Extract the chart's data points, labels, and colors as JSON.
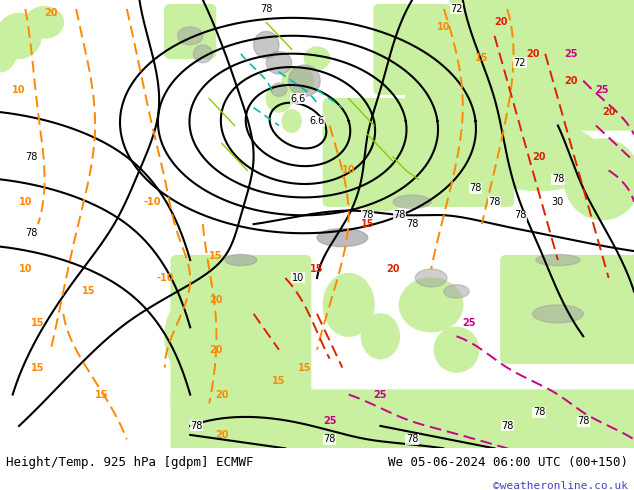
{
  "title_left": "Height/Temp. 925 hPa [gdpm] ECMWF",
  "title_right": "We 05-06-2024 06:00 UTC (00+150)",
  "copyright": "©weatheronline.co.uk",
  "fig_width": 6.34,
  "fig_height": 4.9,
  "dpi": 100,
  "title_fontsize": 9,
  "copyright_color": "#4444cc",
  "copyright_fontsize": 8,
  "land_color": "#c8f0a0",
  "sea_color": "#e8e8e8",
  "gray_color": "#a0a0a0",
  "bottom_bg": "#ffffff",
  "map_bg": "#e0e0e0",
  "geo_color": "#000000",
  "orange_color": "#ff8800",
  "red_color": "#dd2200",
  "magenta_color": "#cc0088",
  "teal_color": "#00bbaa",
  "lime_color": "#88cc00"
}
